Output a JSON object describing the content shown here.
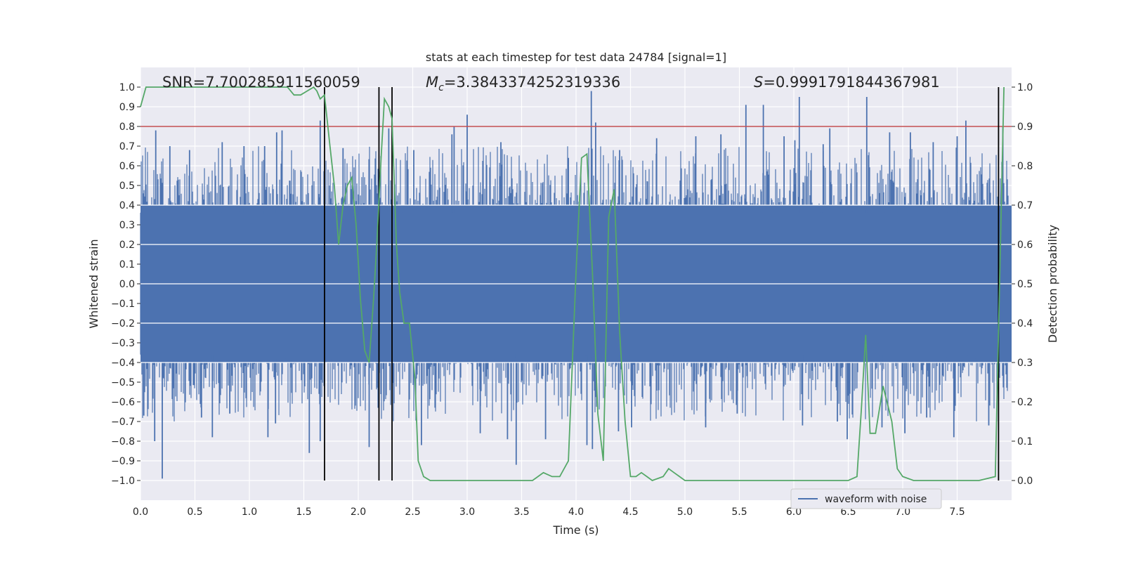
{
  "chart_data": {
    "type": "line",
    "title": "stats at each timestep for test data 24784 [signal=1]",
    "xlabel": "Time (s)",
    "ylabel": "Whitened strain",
    "y2label": "Detection probability",
    "xlim": [
      0.0,
      8.0
    ],
    "ylim": [
      -1.1,
      1.1
    ],
    "y2lim": [
      -0.05,
      1.05
    ],
    "xticks": [
      "0.0",
      "0.5",
      "1.0",
      "1.5",
      "2.0",
      "2.5",
      "3.0",
      "3.5",
      "4.0",
      "4.5",
      "5.0",
      "5.5",
      "6.0",
      "6.5",
      "7.0",
      "7.5"
    ],
    "yticks": [
      "1.0",
      "0.9",
      "0.8",
      "0.7",
      "0.6",
      "0.5",
      "0.4",
      "0.3",
      "0.2",
      "0.1",
      "0.0",
      "−0.1",
      "−0.2",
      "−0.3",
      "−0.4",
      "−0.5",
      "−0.6",
      "−0.7",
      "−0.8",
      "−0.9",
      "−1.0"
    ],
    "y2ticks": [
      "1.0",
      "0.9",
      "0.8",
      "0.7",
      "0.6",
      "0.5",
      "0.4",
      "0.3",
      "0.2",
      "0.1",
      "0.0"
    ],
    "grid": true,
    "legend": {
      "placement": "lower-right",
      "entries": [
        "waveform with noise"
      ]
    },
    "annotations": {
      "snr": "SNR=7.700285911560059",
      "mc_symbol": "M",
      "mc_sub": "c",
      "mc_value": "=3.3843374252319336",
      "s_symbol": "S",
      "s_value": "=0.9991791844367981"
    },
    "threshold": {
      "y2": 0.9,
      "color": "#c44e52"
    },
    "event_lines_x": [
      1.69,
      2.19,
      2.31,
      7.88
    ],
    "series": [
      {
        "name": "waveform with noise",
        "axis": "left",
        "color": "#4c72b0",
        "envelope_description": "dense noise",
        "peaks": [
          [
            0.14,
            0.78
          ],
          [
            0.27,
            0.7
          ],
          [
            0.45,
            0.68
          ],
          [
            0.75,
            0.72
          ],
          [
            0.95,
            0.7
          ],
          [
            1.14,
            0.7
          ],
          [
            1.25,
            0.77
          ],
          [
            1.3,
            0.78
          ],
          [
            1.65,
            0.83
          ],
          [
            1.86,
            0.69
          ],
          [
            2.28,
            0.79
          ],
          [
            2.51,
            0.68
          ],
          [
            2.86,
            0.76
          ],
          [
            2.88,
            0.8
          ],
          [
            3.0,
            0.86
          ],
          [
            3.31,
            0.72
          ],
          [
            3.93,
            0.64
          ],
          [
            4.14,
            0.98
          ],
          [
            4.18,
            0.82
          ],
          [
            4.4,
            0.68
          ],
          [
            4.74,
            0.74
          ],
          [
            5.1,
            0.75
          ],
          [
            5.33,
            0.76
          ],
          [
            5.56,
            0.91
          ],
          [
            5.72,
            0.91
          ],
          [
            5.91,
            0.75
          ],
          [
            6.01,
            0.73
          ],
          [
            6.05,
            0.95
          ],
          [
            6.27,
            0.71
          ],
          [
            6.33,
            0.79
          ],
          [
            6.67,
            0.95
          ],
          [
            6.88,
            0.77
          ],
          [
            7.07,
            0.77
          ],
          [
            7.28,
            0.72
          ],
          [
            7.5,
            0.75
          ],
          [
            7.58,
            0.83
          ],
          [
            7.92,
            0.8
          ]
        ],
        "troughs": [
          [
            0.03,
            -0.67
          ],
          [
            0.13,
            -0.8
          ],
          [
            0.2,
            -0.99
          ],
          [
            0.56,
            -0.68
          ],
          [
            0.66,
            -0.78
          ],
          [
            0.82,
            -0.66
          ],
          [
            1.17,
            -0.78
          ],
          [
            1.24,
            -0.71
          ],
          [
            1.55,
            -0.86
          ],
          [
            1.65,
            -0.8
          ],
          [
            2.1,
            -0.83
          ],
          [
            2.58,
            -0.82
          ],
          [
            3.12,
            -0.76
          ],
          [
            3.37,
            -0.79
          ],
          [
            3.45,
            -0.92
          ],
          [
            3.72,
            -0.79
          ],
          [
            4.1,
            -0.82
          ],
          [
            4.15,
            -0.84
          ],
          [
            4.39,
            -0.75
          ],
          [
            4.51,
            -0.73
          ],
          [
            5.19,
            -0.73
          ],
          [
            5.48,
            -0.66
          ],
          [
            6.08,
            -0.72
          ],
          [
            6.4,
            -0.7
          ],
          [
            6.49,
            -0.79
          ],
          [
            6.81,
            -0.73
          ],
          [
            7.02,
            -0.76
          ],
          [
            7.22,
            -0.68
          ],
          [
            7.47,
            -0.78
          ],
          [
            7.79,
            -0.72
          ]
        ]
      },
      {
        "name": "",
        "axis": "right",
        "color": "#55a868",
        "x": [
          0.0,
          0.05,
          0.2,
          0.4,
          0.6,
          0.8,
          1.0,
          1.2,
          1.35,
          1.41,
          1.47,
          1.53,
          1.59,
          1.62,
          1.65,
          1.69,
          1.74,
          1.78,
          1.82,
          1.86,
          1.9,
          1.94,
          1.98,
          2.02,
          2.06,
          2.1,
          2.14,
          2.17,
          2.21,
          2.24,
          2.28,
          2.31,
          2.35,
          2.38,
          2.42,
          2.47,
          2.52,
          2.55,
          2.6,
          2.66,
          2.75,
          2.9,
          3.0,
          3.2,
          3.4,
          3.5,
          3.6,
          3.7,
          3.78,
          3.85,
          3.93,
          4.0,
          4.05,
          4.1,
          4.15,
          4.2,
          4.25,
          4.3,
          4.35,
          4.4,
          4.45,
          4.5,
          4.55,
          4.6,
          4.65,
          4.7,
          4.8,
          4.85,
          4.9,
          4.95,
          5.0,
          5.1,
          5.2,
          5.4,
          5.7,
          6.0,
          6.3,
          6.5,
          6.58,
          6.62,
          6.66,
          6.7,
          6.75,
          6.82,
          6.9,
          6.95,
          7.0,
          7.1,
          7.3,
          7.5,
          7.6,
          7.7,
          7.85,
          7.93
        ],
        "y": [
          0.95,
          1.0,
          1.0,
          1.0,
          1.0,
          1.0,
          1.0,
          1.0,
          1.0,
          0.98,
          0.98,
          0.99,
          1.0,
          0.99,
          0.97,
          0.98,
          0.85,
          0.75,
          0.6,
          0.7,
          0.75,
          0.77,
          0.65,
          0.46,
          0.33,
          0.3,
          0.46,
          0.6,
          0.82,
          0.97,
          0.95,
          0.92,
          0.6,
          0.48,
          0.4,
          0.4,
          0.26,
          0.05,
          0.01,
          0.0,
          0.0,
          0.0,
          0.0,
          0.0,
          0.0,
          0.0,
          0.0,
          0.02,
          0.01,
          0.01,
          0.05,
          0.53,
          0.82,
          0.83,
          0.53,
          0.17,
          0.05,
          0.67,
          0.74,
          0.38,
          0.15,
          0.01,
          0.01,
          0.02,
          0.01,
          0.0,
          0.01,
          0.03,
          0.02,
          0.01,
          0.0,
          0.0,
          0.0,
          0.0,
          0.0,
          0.0,
          0.0,
          0.0,
          0.01,
          0.18,
          0.37,
          0.12,
          0.12,
          0.24,
          0.15,
          0.03,
          0.01,
          0.0,
          0.0,
          0.0,
          0.0,
          0.0,
          0.01,
          1.0
        ]
      }
    ]
  }
}
